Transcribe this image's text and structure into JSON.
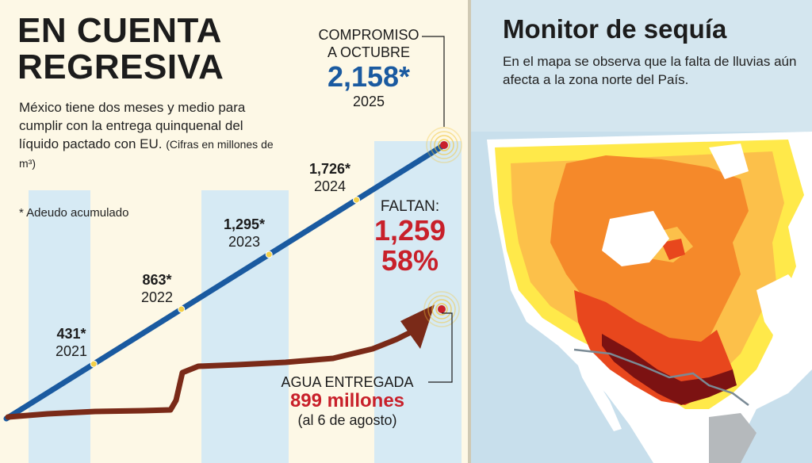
{
  "left": {
    "title_line1": "EN CUENTA",
    "title_line2": "REGRESIVA",
    "subtitle": "México tiene dos meses y medio para cumplir con la entrega quinquenal del líquido pactado con EU.",
    "subtitle_units": "(Cifras en millones de m³)",
    "footnote": "* Adeudo acumulado",
    "commitment": {
      "label_line1": "COMPROMISO",
      "label_line2": "A OCTUBRE",
      "value": "2,158*",
      "year": "2025"
    },
    "remaining": {
      "label": "FALTAN:",
      "value": "1,259",
      "percent": "58%"
    },
    "delivered": {
      "label": "AGUA ENTREGADA",
      "value": "899 millones",
      "date": "(al 6 de agosto)"
    }
  },
  "chart_data": {
    "type": "line",
    "series": [
      {
        "x": [
          2021,
          2022,
          2023,
          2024,
          2025
        ],
        "values": [
          431,
          863,
          1295,
          1726,
          2158
        ],
        "labels": [
          "431*",
          "863*",
          "1,295*",
          "1,726*",
          "2,158*"
        ]
      },
      {
        "values": [
          899
        ]
      }
    ],
    "tick_labels": [
      "2021",
      "2022",
      "2023",
      "2024"
    ],
    "colors": {
      "commitment_line": "#1a5aa0",
      "delivered_arrow": "#7a2a18",
      "highlight": "#c8202a",
      "band": "#d6eaf4"
    }
  },
  "right": {
    "title": "Monitor de sequía",
    "subtitle": "En el mapa se observa que la falta de lluvias aún afecta a la zona norte del País.",
    "colors": {
      "land": "#ffffff",
      "water": "#c8dfec",
      "abnormally_dry": "#ffe94a",
      "moderate": "#fcc04a",
      "severe": "#f5892a",
      "extreme": "#e8471d",
      "exceptional": "#7c1212",
      "border": "#7a8a95"
    }
  }
}
